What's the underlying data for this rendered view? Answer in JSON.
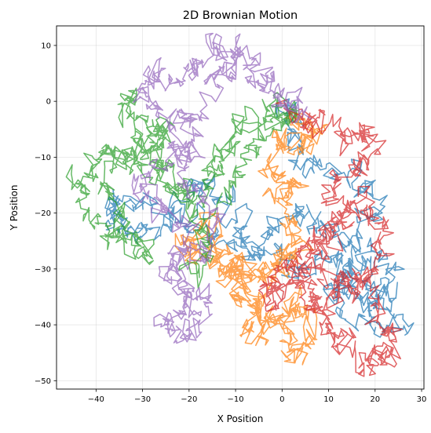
{
  "chart_data": {
    "type": "line",
    "title": "2D Brownian Motion",
    "xlabel": "X Position",
    "ylabel": "Y Position",
    "xlim": [
      -48.5,
      30.5
    ],
    "ylim": [
      -51.5,
      13.5
    ],
    "xticks": [
      -40,
      -30,
      -20,
      -10,
      0,
      10,
      20,
      30
    ],
    "yticks": [
      -50,
      -40,
      -30,
      -20,
      -10,
      0,
      10
    ],
    "xtick_labels": [
      "−40",
      "−30",
      "−20",
      "−10",
      "0",
      "10",
      "20",
      "30"
    ],
    "ytick_labels": [
      "−50",
      "−40",
      "−30",
      "−20",
      "−10",
      "0",
      "10"
    ],
    "grid": true,
    "legend": false,
    "series": [
      {
        "color": "#1f77b4",
        "start": [
          0,
          0
        ],
        "waypoints": [
          [
            0,
            0
          ],
          [
            3,
            -3
          ],
          [
            2,
            -8
          ],
          [
            6,
            -12
          ],
          [
            12,
            -14
          ],
          [
            18,
            -15
          ],
          [
            20,
            -20
          ],
          [
            14,
            -24
          ],
          [
            8,
            -22
          ],
          [
            4,
            -20
          ],
          [
            -2,
            -22
          ],
          [
            -5,
            -26
          ],
          [
            -8,
            -24
          ],
          [
            -12,
            -19
          ],
          [
            -16,
            -15
          ],
          [
            -20,
            -17
          ],
          [
            -26,
            -21
          ],
          [
            -31,
            -18
          ],
          [
            -36,
            -16
          ],
          [
            -38,
            -20
          ],
          [
            -33,
            -22
          ],
          [
            -27,
            -23
          ],
          [
            -22,
            -20
          ],
          [
            -18,
            -22
          ],
          [
            -12,
            -25
          ],
          [
            -6,
            -28
          ],
          [
            -1,
            -27
          ],
          [
            4,
            -30
          ],
          [
            10,
            -27
          ],
          [
            15,
            -30
          ],
          [
            20,
            -27
          ],
          [
            23,
            -31
          ],
          [
            20,
            -37
          ],
          [
            16,
            -35
          ],
          [
            14,
            -30
          ],
          [
            11,
            -34
          ],
          [
            15,
            -38
          ],
          [
            20,
            -39
          ],
          [
            25,
            -40
          ],
          [
            22,
            -34
          ],
          [
            17,
            -29
          ],
          [
            12,
            -25
          ]
        ],
        "steps": 850,
        "jitter": 1.0,
        "seed": 11
      },
      {
        "color": "#ff7f0e",
        "start": [
          0,
          -2
        ],
        "waypoints": [
          [
            0,
            -2
          ],
          [
            4,
            -4
          ],
          [
            8,
            -6
          ],
          [
            5,
            -8
          ],
          [
            2,
            -6
          ],
          [
            -1,
            -9
          ],
          [
            -3,
            -13
          ],
          [
            0,
            -17
          ],
          [
            2,
            -15
          ],
          [
            1,
            -20
          ],
          [
            3,
            -23
          ],
          [
            0,
            -27
          ],
          [
            -3,
            -30
          ],
          [
            -7,
            -33
          ],
          [
            -11,
            -31
          ],
          [
            -15,
            -28
          ],
          [
            -19,
            -27
          ],
          [
            -22,
            -25
          ],
          [
            -18,
            -21
          ],
          [
            -14,
            -25
          ],
          [
            -11,
            -30
          ],
          [
            -8,
            -34
          ],
          [
            -5,
            -38
          ],
          [
            -7,
            -41
          ],
          [
            -3,
            -42
          ],
          [
            0,
            -38
          ],
          [
            3,
            -36
          ],
          [
            6,
            -39
          ],
          [
            5,
            -44
          ],
          [
            2,
            -45
          ],
          [
            -1,
            -41
          ],
          [
            -6,
            -37
          ],
          [
            -10,
            -34
          ],
          [
            -13,
            -31
          ],
          [
            -9,
            -28
          ],
          [
            -4,
            -32
          ],
          [
            0,
            -30
          ],
          [
            2,
            -26
          ]
        ],
        "steps": 800,
        "jitter": 1.0,
        "seed": 23
      },
      {
        "color": "#2ca02c",
        "start": [
          0,
          0
        ],
        "waypoints": [
          [
            0,
            0
          ],
          [
            -4,
            -2
          ],
          [
            -7,
            -4
          ],
          [
            -10,
            -6
          ],
          [
            -12,
            -9
          ],
          [
            -14,
            -12
          ],
          [
            -16,
            -15
          ],
          [
            -19,
            -18
          ],
          [
            -22,
            -15
          ],
          [
            -25,
            -12
          ],
          [
            -28,
            -10
          ],
          [
            -31,
            -8
          ],
          [
            -33,
            -3
          ],
          [
            -32,
            2
          ],
          [
            -30,
            -3
          ],
          [
            -27,
            -6
          ],
          [
            -24,
            -4
          ],
          [
            -28,
            -9
          ],
          [
            -33,
            -11
          ],
          [
            -37,
            -8
          ],
          [
            -41,
            -10
          ],
          [
            -44,
            -13
          ],
          [
            -42,
            -18
          ],
          [
            -40,
            -23
          ],
          [
            -36,
            -24
          ],
          [
            -32,
            -26
          ],
          [
            -28,
            -28
          ],
          [
            -31,
            -23
          ],
          [
            -35,
            -20
          ],
          [
            -38,
            -15
          ],
          [
            -35,
            -10
          ],
          [
            -30,
            -12
          ],
          [
            -25,
            -14
          ],
          [
            -21,
            -17
          ],
          [
            -17,
            -22
          ],
          [
            -16,
            -27
          ],
          [
            -20,
            -30
          ],
          [
            -17,
            -20
          ],
          [
            -13,
            -16
          ],
          [
            -9,
            -11
          ],
          [
            -5,
            -7
          ],
          [
            -2,
            -4
          ],
          [
            1,
            -1
          ],
          [
            3,
            -3
          ]
        ],
        "steps": 800,
        "jitter": 1.0,
        "seed": 37
      },
      {
        "color": "#d62728",
        "start": [
          0,
          -2
        ],
        "waypoints": [
          [
            0,
            -2
          ],
          [
            5,
            -4
          ],
          [
            9,
            -4
          ],
          [
            13,
            -7
          ],
          [
            17,
            -6
          ],
          [
            20,
            -5
          ],
          [
            18,
            -10
          ],
          [
            14,
            -12
          ],
          [
            11,
            -16
          ],
          [
            12,
            -21
          ],
          [
            8,
            -24
          ],
          [
            5,
            -26
          ],
          [
            2,
            -30
          ],
          [
            -1,
            -31
          ],
          [
            -3,
            -34
          ],
          [
            -1,
            -36
          ],
          [
            2,
            -34
          ],
          [
            6,
            -36
          ],
          [
            9,
            -40
          ],
          [
            12,
            -43
          ],
          [
            16,
            -45
          ],
          [
            19,
            -47
          ],
          [
            22,
            -45
          ],
          [
            25,
            -44
          ],
          [
            23,
            -40
          ],
          [
            20,
            -37
          ],
          [
            18,
            -33
          ],
          [
            15,
            -30
          ],
          [
            12,
            -33
          ],
          [
            9,
            -37
          ],
          [
            7,
            -34
          ],
          [
            5,
            -30
          ],
          [
            8,
            -27
          ],
          [
            11,
            -23
          ],
          [
            14,
            -20
          ],
          [
            17,
            -17
          ],
          [
            20,
            -21
          ],
          [
            22,
            -24
          ],
          [
            21,
            -29
          ],
          [
            17,
            -32
          ],
          [
            13,
            -35
          ],
          [
            9,
            -32
          ]
        ],
        "steps": 850,
        "jitter": 1.0,
        "seed": 53
      },
      {
        "color": "#9467bd",
        "start": [
          0,
          0
        ],
        "waypoints": [
          [
            0,
            0
          ],
          [
            -4,
            2
          ],
          [
            -8,
            5
          ],
          [
            -11,
            8
          ],
          [
            -14,
            10
          ],
          [
            -17,
            8
          ],
          [
            -20,
            6
          ],
          [
            -24,
            3
          ],
          [
            -27,
            6
          ],
          [
            -29,
            3
          ],
          [
            -27,
            -1
          ],
          [
            -24,
            -4
          ],
          [
            -21,
            -7
          ],
          [
            -24,
            -10
          ],
          [
            -28,
            -12
          ],
          [
            -31,
            -15
          ],
          [
            -28,
            -18
          ],
          [
            -24,
            -20
          ],
          [
            -21,
            -24
          ],
          [
            -22,
            -28
          ],
          [
            -25,
            -30
          ],
          [
            -21,
            -33
          ],
          [
            -19,
            -36
          ],
          [
            -22,
            -38
          ],
          [
            -25,
            -40
          ],
          [
            -22,
            -42
          ],
          [
            -18,
            -41
          ],
          [
            -15,
            -38
          ],
          [
            -19,
            -35
          ],
          [
            -21,
            -31
          ],
          [
            -18,
            -28
          ],
          [
            -15,
            -25
          ],
          [
            -14,
            -21
          ],
          [
            -18,
            -18
          ],
          [
            -21,
            -15
          ],
          [
            -20,
            -11
          ],
          [
            -18,
            -8
          ],
          [
            -21,
            -4
          ],
          [
            -18,
            -1
          ],
          [
            -15,
            3
          ],
          [
            -12,
            6
          ],
          [
            -8,
            9
          ],
          [
            -4,
            6
          ],
          [
            -1,
            2
          ],
          [
            2,
            -1
          ],
          [
            4,
            -3
          ]
        ],
        "steps": 800,
        "jitter": 1.0,
        "seed": 71
      }
    ]
  }
}
